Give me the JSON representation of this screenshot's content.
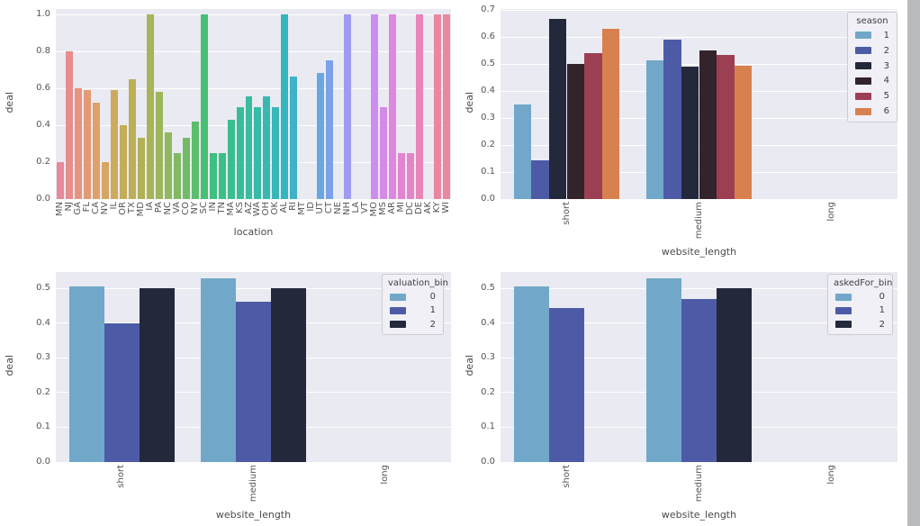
{
  "style": {
    "canvas_bg": "#ffffff",
    "plot_bg": "#eaeaf2",
    "grid_color": "#ffffff",
    "tick_color": "#555555",
    "axis_label_color": "#4a4a4a",
    "legend_bg": "#f0f0f6",
    "legend_border": "#ccccd4",
    "scrollbar_color": "#b9bbbd"
  },
  "chart_data": [
    {
      "type": "bar",
      "xlabel": "location",
      "ylabel": "deal",
      "ylim": [
        0,
        1.03
      ],
      "yticks": [
        0.0,
        0.2,
        0.4,
        0.6,
        0.8,
        1.0
      ],
      "grid": true,
      "legend": null,
      "categories": [
        "MN",
        "NJ",
        "GA",
        "FL",
        "CA",
        "NV",
        "IL",
        "OR",
        "TX",
        "MD",
        "IA",
        "PA",
        "NC",
        "VA",
        "CO",
        "NY",
        "SC",
        "IN",
        "TN",
        "MA",
        "KS",
        "AZ",
        "WA",
        "OH",
        "OK",
        "AL",
        "RI",
        "MT",
        "ID",
        "UT",
        "CT",
        "NE",
        "NH",
        "LA",
        "VT",
        "MO",
        "MS",
        "AR",
        "MI",
        "DC",
        "DE",
        "AK",
        "KY",
        "WI"
      ],
      "values": [
        0.2,
        0.8,
        0.6,
        0.59,
        0.52,
        0.2,
        0.59,
        0.4,
        0.65,
        0.33,
        1.0,
        0.58,
        0.36,
        0.25,
        0.33,
        0.42,
        1.0,
        0.25,
        0.25,
        0.43,
        0.5,
        0.555,
        0.5,
        0.555,
        0.5,
        1.0,
        0.665,
        null,
        null,
        0.685,
        0.75,
        null,
        1.0,
        null,
        null,
        1.0,
        0.5,
        1.0,
        0.25,
        0.25,
        1.0,
        null,
        1.0,
        1.0
      ],
      "bar_colors": [
        "#e78a9b",
        "#e78d8c",
        "#e79380",
        "#e39a74",
        "#dda16a",
        "#d6a662",
        "#cdaa5c",
        "#c4ad58",
        "#bbb055",
        "#b1b254",
        "#a7b457",
        "#9cb65b",
        "#8fb85f",
        "#81ba62",
        "#70bc66",
        "#5cbe6c",
        "#47bf74",
        "#3ec07e",
        "#3bbf88",
        "#3abe90",
        "#39bd98",
        "#39bca0",
        "#38baa8",
        "#38b9af",
        "#37b7b7",
        "#37b5bf",
        "#3db2c8",
        "#49aed1",
        "#58abd9",
        "#68a7e0",
        "#7ba2e8",
        "#8e9ded",
        "#a09af0",
        "#b295f1",
        "#c091f1",
        "#cb8ef0",
        "#d58ae8",
        "#dd87dd",
        "#e285d1",
        "#e685c5",
        "#e885b9",
        "#e986ad",
        "#e987a3",
        "#e8899d"
      ]
    },
    {
      "type": "bar",
      "grouped": true,
      "xlabel": "website_length",
      "ylabel": "deal",
      "ylim": [
        0,
        0.705
      ],
      "yticks": [
        0.0,
        0.1,
        0.2,
        0.3,
        0.4,
        0.5,
        0.6,
        0.7
      ],
      "grid": true,
      "categories": [
        "short",
        "medium",
        "long"
      ],
      "legend": {
        "title": "season",
        "position": "upper right"
      },
      "series": [
        {
          "name": "1",
          "color": "#71a8c9",
          "values": [
            0.35,
            0.515,
            null
          ]
        },
        {
          "name": "2",
          "color": "#4d5ba7",
          "values": [
            0.145,
            0.59,
            null
          ]
        },
        {
          "name": "3",
          "color": "#23283b",
          "values": [
            0.667,
            0.49,
            null
          ]
        },
        {
          "name": "4",
          "color": "#33232a",
          "values": [
            0.5,
            0.55,
            null
          ]
        },
        {
          "name": "5",
          "color": "#9c3f52",
          "values": [
            0.54,
            0.535,
            null
          ]
        },
        {
          "name": "6",
          "color": "#d8814f",
          "values": [
            0.63,
            0.495,
            null
          ]
        }
      ]
    },
    {
      "type": "bar",
      "grouped": true,
      "xlabel": "website_length",
      "ylabel": "deal",
      "ylim": [
        0,
        0.547
      ],
      "yticks": [
        0.0,
        0.1,
        0.2,
        0.3,
        0.4,
        0.5
      ],
      "grid": true,
      "categories": [
        "short",
        "medium",
        "long"
      ],
      "legend": {
        "title": "valuation_bin",
        "position": "upper right"
      },
      "series": [
        {
          "name": "0",
          "color": "#71a8c9",
          "values": [
            0.505,
            0.53,
            null
          ]
        },
        {
          "name": "1",
          "color": "#4d5ba7",
          "values": [
            0.4,
            0.462,
            null
          ]
        },
        {
          "name": "2",
          "color": "#23283b",
          "values": [
            0.5,
            0.5,
            null
          ]
        }
      ]
    },
    {
      "type": "bar",
      "grouped": true,
      "xlabel": "website_length",
      "ylabel": "deal",
      "ylim": [
        0,
        0.547
      ],
      "yticks": [
        0.0,
        0.1,
        0.2,
        0.3,
        0.4,
        0.5
      ],
      "grid": true,
      "categories": [
        "short",
        "medium",
        "long"
      ],
      "legend": {
        "title": "askedFor_bin",
        "position": "upper right"
      },
      "series": [
        {
          "name": "0",
          "color": "#71a8c9",
          "values": [
            0.505,
            0.53,
            null
          ]
        },
        {
          "name": "1",
          "color": "#4d5ba7",
          "values": [
            0.443,
            0.47,
            null
          ]
        },
        {
          "name": "2",
          "color": "#23283b",
          "values": [
            null,
            0.5,
            null
          ]
        }
      ]
    }
  ]
}
